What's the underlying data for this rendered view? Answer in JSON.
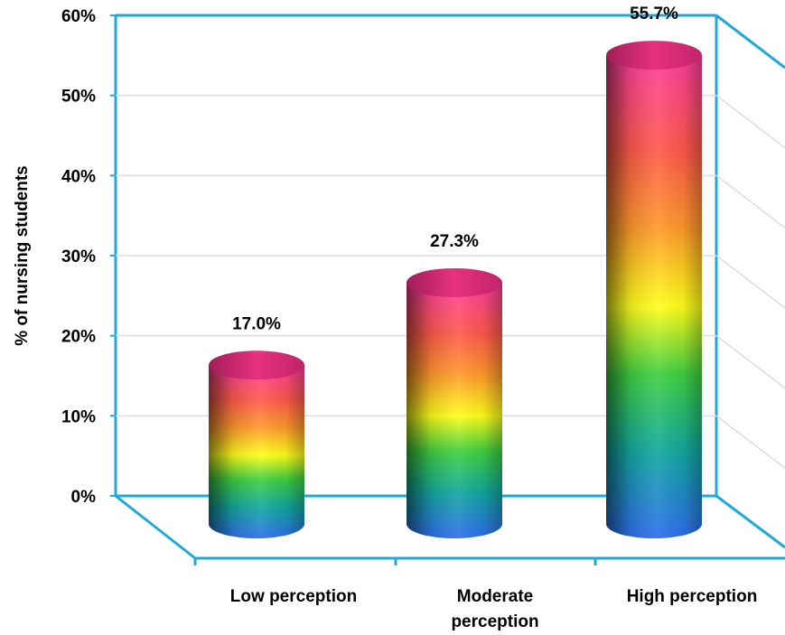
{
  "chart_data": {
    "type": "bar",
    "style": "3d-cylinder",
    "categories": [
      "Low perception",
      "Moderate perception",
      "High perception"
    ],
    "category_lines": [
      [
        "Low perception"
      ],
      [
        "Moderate",
        "perception"
      ],
      [
        "High perception"
      ]
    ],
    "values": [
      17.0,
      27.3,
      55.7
    ],
    "data_labels": [
      "17.0%",
      "27.3%",
      "55.7%"
    ],
    "ylabel": "% of nursing students",
    "ylim": [
      0,
      60
    ],
    "yticks": [
      0,
      10,
      20,
      30,
      40,
      50,
      60
    ],
    "ytick_labels": [
      "0%",
      "10%",
      "20%",
      "30%",
      "40%",
      "50%",
      "60%"
    ],
    "grid": true,
    "colors": {
      "axis": "#1fa8d8",
      "grid": "#d8dde2",
      "gradient": [
        "#ff3e9e",
        "#ff5a4a",
        "#ff9a2a",
        "#ffff1a",
        "#3fd040",
        "#12a8a0",
        "#2f6ef0"
      ],
      "cap": "#d42a74"
    }
  }
}
